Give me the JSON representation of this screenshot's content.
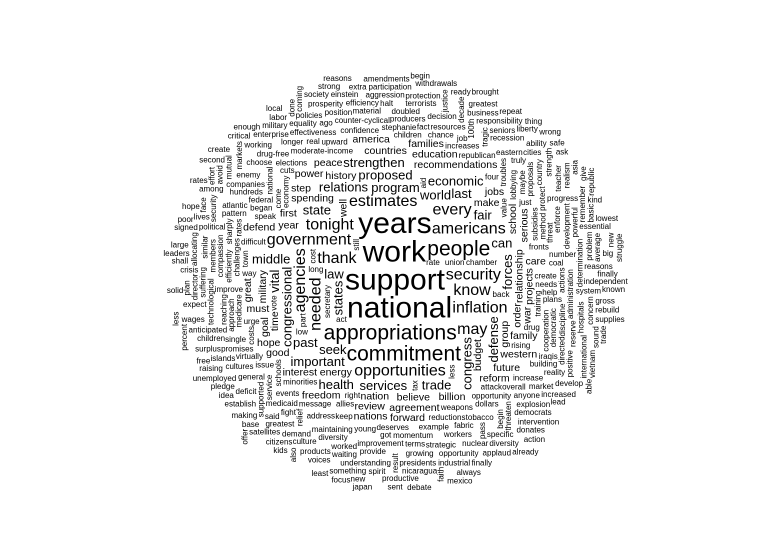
{
  "words": [
    {
      "t": "appropriations",
      "w": 5
    },
    {
      "t": "support",
      "w": 6
    },
    {
      "t": "work",
      "w": 6
    },
    {
      "t": "national",
      "w": 6
    },
    {
      "t": "years",
      "w": 6
    },
    {
      "t": "people",
      "w": 5
    },
    {
      "t": "commitment",
      "w": 5
    },
    {
      "t": "security",
      "w": 4
    },
    {
      "t": "thank",
      "w": 4
    },
    {
      "t": "estimates",
      "w": 4
    },
    {
      "t": "needed",
      "w": 4
    },
    {
      "t": "americans",
      "w": 4
    },
    {
      "t": "agencies",
      "w": 4
    },
    {
      "t": "government",
      "w": 4
    },
    {
      "t": "know",
      "w": 4
    },
    {
      "t": "tonight",
      "w": 4
    },
    {
      "t": "opportunities",
      "w": 4
    },
    {
      "t": "inflation",
      "w": 4
    },
    {
      "t": "every",
      "w": 4
    },
    {
      "t": "may",
      "w": 4
    },
    {
      "t": "seek",
      "w": 3
    },
    {
      "t": "program",
      "w": 3
    },
    {
      "t": "world",
      "w": 3
    },
    {
      "t": "state",
      "w": 3
    },
    {
      "t": "proposed",
      "w": 3
    },
    {
      "t": "congressional",
      "w": 3
    },
    {
      "t": "services",
      "w": 3
    },
    {
      "t": "states",
      "w": 3
    },
    {
      "t": "forces",
      "w": 3
    },
    {
      "t": "relations",
      "w": 3
    },
    {
      "t": "important",
      "w": 3
    },
    {
      "t": "congress",
      "w": 3
    },
    {
      "t": "law",
      "w": 3
    },
    {
      "t": "past",
      "w": 3
    },
    {
      "t": "last",
      "w": 3
    },
    {
      "t": "defense",
      "w": 3
    },
    {
      "t": "economic",
      "w": 3
    },
    {
      "t": "strengthen",
      "w": 3
    },
    {
      "t": "trade",
      "w": 3
    },
    {
      "t": "fair",
      "w": 3
    },
    {
      "t": "can",
      "w": 3
    },
    {
      "t": "vital",
      "w": 3
    },
    {
      "t": "middle",
      "w": 3
    },
    {
      "t": "health",
      "w": 3
    },
    {
      "t": "year",
      "w": 2
    },
    {
      "t": "make",
      "w": 2
    },
    {
      "t": "energy",
      "w": 2
    },
    {
      "t": "budget",
      "w": 2
    },
    {
      "t": "relationship",
      "w": 2
    },
    {
      "t": "order",
      "w": 2
    },
    {
      "t": "believe",
      "w": 2
    },
    {
      "t": "recommendations",
      "w": 2
    },
    {
      "t": "spending",
      "w": 2
    },
    {
      "t": "history",
      "w": 2
    },
    {
      "t": "well",
      "w": 2
    },
    {
      "t": "time",
      "w": 2
    },
    {
      "t": "military",
      "w": 2
    },
    {
      "t": "projects",
      "w": 2
    },
    {
      "t": "nation",
      "w": 2
    },
    {
      "t": "group",
      "w": 2
    },
    {
      "t": "school",
      "w": 2
    },
    {
      "t": "review",
      "w": 2
    },
    {
      "t": "first",
      "w": 2
    },
    {
      "t": "step",
      "w": 2
    },
    {
      "t": "billion",
      "w": 2
    },
    {
      "t": "countries",
      "w": 2
    },
    {
      "t": "agreement",
      "w": 2
    },
    {
      "t": "interest",
      "w": 2
    },
    {
      "t": "serious",
      "w": 2
    },
    {
      "t": "jobs",
      "w": 2
    },
    {
      "t": "power",
      "w": 2
    },
    {
      "t": "freedom",
      "w": 2
    },
    {
      "t": "goal",
      "w": 2
    },
    {
      "t": "education",
      "w": 2
    },
    {
      "t": "peace",
      "w": 2
    },
    {
      "t": "war",
      "w": 2
    },
    {
      "t": "future",
      "w": 2
    },
    {
      "t": "nations",
      "w": 2
    },
    {
      "t": "western",
      "w": 2
    },
    {
      "t": "families",
      "w": 2
    },
    {
      "t": "family",
      "w": 2
    },
    {
      "t": "defend",
      "w": 2
    },
    {
      "t": "good",
      "w": 2
    },
    {
      "t": "reform",
      "w": 2
    },
    {
      "t": "forward",
      "w": 2
    },
    {
      "t": "care",
      "w": 2
    },
    {
      "t": "america",
      "w": 2
    },
    {
      "t": "must",
      "w": 2
    },
    {
      "t": "hope",
      "w": 2
    },
    {
      "t": "great",
      "w": 2
    },
    {
      "t": "economy",
      "w": 1
    },
    {
      "t": "chamber",
      "w": 1
    },
    {
      "t": "moderate-income",
      "w": 1
    },
    {
      "t": "secretary",
      "w": 1
    },
    {
      "t": "vote",
      "w": 1
    },
    {
      "t": "fronts",
      "w": 1
    },
    {
      "t": "difficult",
      "w": 1
    },
    {
      "t": "allies",
      "w": 1
    },
    {
      "t": "training",
      "w": 1
    },
    {
      "t": "create",
      "w": 1
    },
    {
      "t": "speak",
      "w": 1
    },
    {
      "t": "part",
      "w": 1
    },
    {
      "t": "union",
      "w": 1
    },
    {
      "t": "needs",
      "w": 1
    },
    {
      "t": "back",
      "w": 1
    },
    {
      "t": "attack",
      "w": 1
    },
    {
      "t": "come",
      "w": 1
    },
    {
      "t": "weapons",
      "w": 1
    },
    {
      "t": "message",
      "w": 1
    },
    {
      "t": "value",
      "w": 1
    },
    {
      "t": "subsidies",
      "w": 1
    },
    {
      "t": "medicare",
      "w": 1
    },
    {
      "t": "minorities",
      "w": 1
    },
    {
      "t": "schools",
      "w": 1
    },
    {
      "t": "rising",
      "w": 1
    },
    {
      "t": "urge",
      "w": 1
    },
    {
      "t": "began",
      "w": 1
    },
    {
      "t": "long",
      "w": 1
    },
    {
      "t": "reductions",
      "w": 1
    },
    {
      "t": "lobbying",
      "w": 1
    },
    {
      "t": "right",
      "w": 1
    },
    {
      "t": "opportunity",
      "w": 1
    },
    {
      "t": "less",
      "w": 1
    },
    {
      "t": "deserves",
      "w": 1
    },
    {
      "t": "challenges",
      "w": 1
    },
    {
      "t": "way",
      "w": 1
    },
    {
      "t": "drug",
      "w": 1
    },
    {
      "t": "method",
      "w": 1
    },
    {
      "t": "keep",
      "w": 1
    },
    {
      "t": "cooperation",
      "w": 1
    },
    {
      "t": "aid",
      "w": 1
    },
    {
      "t": "just",
      "w": 1
    },
    {
      "t": "upward",
      "w": 1
    },
    {
      "t": "children",
      "w": 1
    },
    {
      "t": "elections",
      "w": 1
    },
    {
      "t": "increases",
      "w": 1
    },
    {
      "t": "stephanie",
      "w": 1
    },
    {
      "t": "example",
      "w": 1
    },
    {
      "t": "events",
      "w": 1
    },
    {
      "t": "federal",
      "w": 1
    },
    {
      "t": "address",
      "w": 1
    },
    {
      "t": "plans",
      "w": 1
    },
    {
      "t": "confidence",
      "w": 1
    },
    {
      "t": "momentum",
      "w": 1
    },
    {
      "t": "troubles",
      "w": 1
    },
    {
      "t": "issue",
      "w": 1
    },
    {
      "t": "dollars",
      "w": 1
    },
    {
      "t": "chance",
      "w": 1
    },
    {
      "t": "national",
      "w": 1
    },
    {
      "t": "costs",
      "w": 1
    },
    {
      "t": "young",
      "w": 1
    },
    {
      "t": "republican",
      "w": 1
    },
    {
      "t": "maintaining",
      "w": 1
    },
    {
      "t": "number",
      "w": 1
    },
    {
      "t": "maybe",
      "w": 1
    },
    {
      "t": "improve",
      "w": 1
    },
    {
      "t": "approach",
      "w": 1
    },
    {
      "t": "democratic",
      "w": 1
    },
    {
      "t": "coal",
      "w": 1
    },
    {
      "t": "virtually",
      "w": 1
    },
    {
      "t": "efficiently",
      "w": 1
    },
    {
      "t": "counter-cyclical",
      "w": 1
    },
    {
      "t": "town",
      "w": 1
    },
    {
      "t": "threat",
      "w": 1
    },
    {
      "t": "increase",
      "w": 1
    },
    {
      "t": "service",
      "w": 1
    },
    {
      "t": "act",
      "w": 1
    },
    {
      "t": "actions",
      "w": 1
    },
    {
      "t": "protect",
      "w": 1
    },
    {
      "t": "overall",
      "w": 1
    },
    {
      "t": "sharply",
      "w": 1
    },
    {
      "t": "tobacco",
      "w": 1
    },
    {
      "t": "medicaid",
      "w": 1
    },
    {
      "t": "building",
      "w": 1
    },
    {
      "t": "improvement",
      "w": 1
    },
    {
      "t": "discipline",
      "w": 1
    },
    {
      "t": "single",
      "w": 1
    },
    {
      "t": "resources",
      "w": 1
    },
    {
      "t": "proposals",
      "w": 1
    },
    {
      "t": "hundreds",
      "w": 1
    },
    {
      "t": "rates",
      "w": 1
    },
    {
      "t": "compassion",
      "w": 1
    },
    {
      "t": "real",
      "w": 1
    },
    {
      "t": "fabric",
      "w": 1
    },
    {
      "t": "reaching",
      "w": 1
    },
    {
      "t": "producers",
      "w": 1
    },
    {
      "t": "companies",
      "w": 1
    },
    {
      "t": "effectiveness",
      "w": 1
    },
    {
      "t": "workers",
      "w": 1
    },
    {
      "t": "enforce",
      "w": 1
    },
    {
      "t": "administration",
      "w": 1
    },
    {
      "t": "general",
      "w": 1
    },
    {
      "t": "technological",
      "w": 1
    },
    {
      "t": "development",
      "w": 1
    },
    {
      "t": "pattern",
      "w": 1
    },
    {
      "t": "supported",
      "w": 1
    },
    {
      "t": "determination",
      "w": 1
    },
    {
      "t": "doubled",
      "w": 1
    },
    {
      "t": "longer",
      "w": 1
    },
    {
      "t": "tragic",
      "w": 1
    },
    {
      "t": "100th",
      "w": 1
    },
    {
      "t": "diversity",
      "w": 1
    },
    {
      "t": "decision",
      "w": 1
    },
    {
      "t": "strategic",
      "w": 1
    },
    {
      "t": "anyone",
      "w": 1
    },
    {
      "t": "material",
      "w": 1
    },
    {
      "t": "promises",
      "w": 1
    },
    {
      "t": "eastern",
      "w": 1
    },
    {
      "t": "relief",
      "w": 1
    },
    {
      "t": "enemy",
      "w": 1
    },
    {
      "t": "growing",
      "w": 1
    },
    {
      "t": "choose",
      "w": 1
    },
    {
      "t": "members",
      "w": 1
    },
    {
      "t": "threaten",
      "w": 1
    },
    {
      "t": "provide",
      "w": 1
    },
    {
      "t": "atlantic",
      "w": 1
    },
    {
      "t": "directed",
      "w": 1
    },
    {
      "t": "market",
      "w": 1
    },
    {
      "t": "country",
      "w": 1
    },
    {
      "t": "drug-free",
      "w": 1
    },
    {
      "t": "cultures",
      "w": 1
    },
    {
      "t": "pass",
      "w": 1
    },
    {
      "t": "begin",
      "w": 1
    },
    {
      "t": "demand",
      "w": 1
    },
    {
      "t": "reserve",
      "w": 1
    },
    {
      "t": "terrorists",
      "w": 1
    },
    {
      "t": "equality",
      "w": 1
    },
    {
      "t": "progress",
      "w": 1
    },
    {
      "t": "efficiency",
      "w": 1
    },
    {
      "t": "deficit",
      "w": 1
    },
    {
      "t": "recession",
      "w": 1
    },
    {
      "t": "explosion",
      "w": 1
    },
    {
      "t": "anticipated",
      "w": 1
    },
    {
      "t": "political",
      "w": 1
    },
    {
      "t": "nuclear",
      "w": 1
    },
    {
      "t": "children",
      "w": 1
    },
    {
      "t": "hospitals",
      "w": 1
    },
    {
      "t": "system",
      "w": 1
    },
    {
      "t": "fight",
      "w": 1
    },
    {
      "t": "waiting",
      "w": 1
    },
    {
      "t": "suffering",
      "w": 1
    },
    {
      "t": "strength",
      "w": 1
    },
    {
      "t": "position",
      "w": 1
    },
    {
      "t": "presidents",
      "w": 1
    },
    {
      "t": "seniors",
      "w": 1
    },
    {
      "t": "reality",
      "w": 1
    },
    {
      "t": "democrats",
      "w": 1
    },
    {
      "t": "understanding",
      "w": 1
    },
    {
      "t": "opportunity",
      "w": 1
    },
    {
      "t": "powerful",
      "w": 1
    },
    {
      "t": "culture",
      "w": 1
    },
    {
      "t": "similar",
      "w": 1
    },
    {
      "t": "greatest",
      "w": 1
    },
    {
      "t": "working",
      "w": 1
    },
    {
      "t": "specific",
      "w": 1
    },
    {
      "t": "islands",
      "w": 1
    },
    {
      "t": "teacher",
      "w": 1
    },
    {
      "t": "decade",
      "w": 1
    },
    {
      "t": "aggression",
      "w": 1
    },
    {
      "t": "products",
      "w": 1
    },
    {
      "t": "business",
      "w": 1
    },
    {
      "t": "positive",
      "w": 1
    },
    {
      "t": "security",
      "w": 1
    },
    {
      "t": "policies",
      "w": 1
    },
    {
      "t": "protection",
      "w": 1
    },
    {
      "t": "prosperity",
      "w": 1
    },
    {
      "t": "enterprise",
      "w": 1
    },
    {
      "t": "establish",
      "w": 1
    },
    {
      "t": "problem",
      "w": 1
    },
    {
      "t": "result",
      "w": 1
    },
    {
      "t": "participation",
      "w": 1
    },
    {
      "t": "industrial",
      "w": 1
    },
    {
      "t": "nicaragua",
      "w": 1
    },
    {
      "t": "director",
      "w": 1
    },
    {
      "t": "worked",
      "w": 1
    },
    {
      "t": "responsibility",
      "w": 1
    },
    {
      "t": "military",
      "w": 1
    },
    {
      "t": "concern",
      "w": 1
    },
    {
      "t": "intervention",
      "w": 1
    },
    {
      "t": "reasons",
      "w": 1
    },
    {
      "t": "essential",
      "w": 1
    },
    {
      "t": "einstein",
      "w": 1
    },
    {
      "t": "justice",
      "w": 1
    },
    {
      "t": "pledge",
      "w": 1
    },
    {
      "t": "satellites",
      "w": 1
    },
    {
      "t": "markets",
      "w": 1
    },
    {
      "t": "increased",
      "w": 1
    },
    {
      "t": "cities",
      "w": 1
    },
    {
      "t": "allocating",
      "w": 1
    },
    {
      "t": "surplus",
      "w": 1
    },
    {
      "t": "something",
      "w": 1
    },
    {
      "t": "international",
      "w": 1
    },
    {
      "t": "expect",
      "w": 1
    },
    {
      "t": "realism",
      "w": 1
    },
    {
      "t": "wages",
      "w": 1
    },
    {
      "t": "productive",
      "w": 1
    },
    {
      "t": "amendments",
      "w": 1
    },
    {
      "t": "unemployed",
      "w": 1
    },
    {
      "t": "remember",
      "w": 1
    },
    {
      "t": "greatest",
      "w": 1
    },
    {
      "t": "independent",
      "w": 1
    },
    {
      "t": "donates",
      "w": 1
    },
    {
      "t": "diversity",
      "w": 1
    },
    {
      "t": "voices",
      "w": 1
    },
    {
      "t": "crisis",
      "w": 1
    },
    {
      "t": "develop",
      "w": 1
    },
    {
      "t": "applaud",
      "w": 1
    },
    {
      "t": "raising",
      "w": 1
    },
    {
      "t": "terms",
      "w": 1
    },
    {
      "t": "gross",
      "w": 1
    },
    {
      "t": "truly",
      "w": 1
    },
    {
      "t": "citizens",
      "w": 1
    },
    {
      "t": "ability",
      "w": 1
    },
    {
      "t": "among",
      "w": 1
    },
    {
      "t": "halt",
      "w": 1
    },
    {
      "t": "mutual",
      "w": 1
    },
    {
      "t": "sound",
      "w": 1
    },
    {
      "t": "still",
      "w": 1
    },
    {
      "t": "ago",
      "w": 1
    },
    {
      "t": "idea",
      "w": 1
    },
    {
      "t": "ready",
      "w": 1
    },
    {
      "t": "lives",
      "w": 1
    },
    {
      "t": "face",
      "w": 1
    },
    {
      "t": "average",
      "w": 1
    },
    {
      "t": "withdrawals",
      "w": 1
    },
    {
      "t": "extra",
      "w": 1
    },
    {
      "t": "finally",
      "w": 1
    },
    {
      "t": "coming",
      "w": 1
    },
    {
      "t": "iraqis",
      "w": 1
    },
    {
      "t": "asia",
      "w": 1
    },
    {
      "t": "cuts",
      "w": 1
    },
    {
      "t": "society",
      "w": 1
    },
    {
      "t": "avoid",
      "w": 1
    },
    {
      "t": "leaders",
      "w": 1
    },
    {
      "t": "making",
      "w": 1
    },
    {
      "t": "labor",
      "w": 1
    },
    {
      "t": "liberty",
      "w": 1
    },
    {
      "t": "rebuild",
      "w": 1
    },
    {
      "t": "repeat",
      "w": 1
    },
    {
      "t": "finally",
      "w": 1
    },
    {
      "t": "vietnam",
      "w": 1
    },
    {
      "t": "basic",
      "w": 1
    },
    {
      "t": "spirit",
      "w": 1
    },
    {
      "t": "always",
      "w": 1
    },
    {
      "t": "enough",
      "w": 1
    },
    {
      "t": "tax",
      "w": 1
    },
    {
      "t": "free",
      "w": 1
    },
    {
      "t": "give",
      "w": 1
    },
    {
      "t": "help",
      "w": 1
    },
    {
      "t": "plan",
      "w": 1
    },
    {
      "t": "cost",
      "w": 1
    },
    {
      "t": "lead",
      "w": 1
    },
    {
      "t": "fact",
      "w": 1
    },
    {
      "t": "got",
      "w": 1
    },
    {
      "t": "low",
      "w": 1
    },
    {
      "t": "new",
      "w": 1
    },
    {
      "t": "done",
      "w": 1
    },
    {
      "t": "shall",
      "w": 1
    },
    {
      "t": "effort",
      "w": 1
    },
    {
      "t": "four",
      "w": 1
    },
    {
      "t": "also",
      "w": 1
    },
    {
      "t": "thing",
      "w": 1
    },
    {
      "t": "least",
      "w": 1
    },
    {
      "t": "faith",
      "w": 1
    },
    {
      "t": "base",
      "w": 1
    },
    {
      "t": "ask",
      "w": 1
    },
    {
      "t": "supplies",
      "w": 1
    },
    {
      "t": "strong",
      "w": 1
    },
    {
      "t": "large",
      "w": 1
    },
    {
      "t": "action",
      "w": 1
    },
    {
      "t": "signed",
      "w": 1
    },
    {
      "t": "sent",
      "w": 1
    },
    {
      "t": "said",
      "w": 1
    },
    {
      "t": "trade",
      "w": 1
    },
    {
      "t": "new",
      "w": 1
    },
    {
      "t": "brought",
      "w": 1
    },
    {
      "t": "rates",
      "w": 1
    },
    {
      "t": "kind",
      "w": 1
    },
    {
      "t": "local",
      "w": 1
    },
    {
      "t": "safe",
      "w": 1
    },
    {
      "t": "less",
      "w": 1
    },
    {
      "t": "hope",
      "w": 1
    },
    {
      "t": "rate",
      "w": 1
    },
    {
      "t": "job",
      "w": 1
    },
    {
      "t": "big",
      "w": 1
    },
    {
      "t": "begin",
      "w": 1
    },
    {
      "t": "reasons",
      "w": 1
    },
    {
      "t": "poor",
      "w": 1
    },
    {
      "t": "kids",
      "w": 1
    },
    {
      "t": "able",
      "w": 1
    },
    {
      "t": "second",
      "w": 1
    },
    {
      "t": "known",
      "w": 1
    },
    {
      "t": "mexico",
      "w": 1
    },
    {
      "t": "wrong",
      "w": 1
    },
    {
      "t": "republic",
      "w": 1
    },
    {
      "t": "percent",
      "w": 1
    },
    {
      "t": "already",
      "w": 1
    },
    {
      "t": "focus",
      "w": 1
    },
    {
      "t": "lowest",
      "w": 1
    },
    {
      "t": "solid",
      "w": 1
    },
    {
      "t": "debate",
      "w": 1
    },
    {
      "t": "critical",
      "w": 1
    },
    {
      "t": "struggle",
      "w": 1
    },
    {
      "t": "offer",
      "w": 1
    },
    {
      "t": "japan",
      "w": 1
    },
    {
      "t": "create",
      "w": 1
    }
  ]
}
